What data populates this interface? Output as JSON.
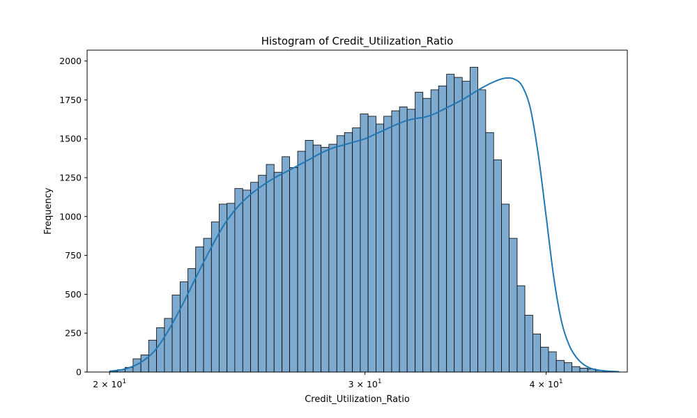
{
  "chart_data": {
    "type": "bar",
    "title": "Histogram of Credit_Utilization_Ratio",
    "xlabel": "Credit_Utilization_Ratio",
    "ylabel": "Frequency",
    "x_scale": "log",
    "xlim": [
      19.3,
      45.5
    ],
    "ylim": [
      0,
      2070
    ],
    "y_ticks": [
      0,
      250,
      500,
      750,
      1000,
      1250,
      1500,
      1750,
      2000
    ],
    "y_tick_labels": [
      "0",
      "250",
      "500",
      "750",
      "1000",
      "1250",
      "1500",
      "1750",
      "2000"
    ],
    "x_ticks": [
      20,
      30,
      40
    ],
    "x_tick_labels": [
      {
        "base": "2 × 10",
        "exp": "1"
      },
      {
        "base": "3 × 10",
        "exp": "1"
      },
      {
        "base": "4 × 10",
        "exp": "1"
      }
    ],
    "bin_edges": [
      20.0,
      20.25,
      20.5,
      20.76,
      21.02,
      21.28,
      21.55,
      21.82,
      22.09,
      22.37,
      22.65,
      22.93,
      23.22,
      23.51,
      23.8,
      24.1,
      24.4,
      24.71,
      25.02,
      25.33,
      25.65,
      25.97,
      26.3,
      26.62,
      26.96,
      27.29,
      27.63,
      27.98,
      28.33,
      28.69,
      29.04,
      29.41,
      29.78,
      30.15,
      30.53,
      30.91,
      31.3,
      31.69,
      32.08,
      32.49,
      32.89,
      33.31,
      33.72,
      34.15,
      34.57,
      35.01,
      35.45,
      35.89,
      36.34,
      36.8,
      37.26,
      37.72,
      38.2,
      38.67,
      39.16,
      39.65,
      40.15,
      40.65,
      41.16,
      41.67,
      42.2,
      42.73,
      43.26,
      43.8,
      44.35,
      44.91
    ],
    "values": [
      5,
      15,
      30,
      85,
      110,
      205,
      285,
      345,
      495,
      580,
      665,
      805,
      860,
      965,
      1080,
      1085,
      1180,
      1170,
      1220,
      1265,
      1335,
      1285,
      1385,
      1315,
      1420,
      1490,
      1460,
      1445,
      1465,
      1520,
      1540,
      1570,
      1660,
      1645,
      1595,
      1645,
      1680,
      1705,
      1690,
      1800,
      1760,
      1815,
      1840,
      1915,
      1895,
      1870,
      1960,
      1815,
      1540,
      1365,
      1080,
      860,
      555,
      365,
      245,
      160,
      130,
      75,
      60,
      35,
      25,
      20,
      10,
      5,
      2
    ],
    "kde": {
      "x": [
        20.0,
        20.5,
        21.0,
        21.5,
        22.0,
        22.5,
        23.0,
        23.5,
        24.0,
        24.5,
        25.0,
        25.5,
        26.0,
        26.5,
        27.0,
        27.5,
        28.0,
        28.5,
        29.0,
        29.5,
        30.0,
        30.5,
        31.0,
        31.5,
        32.0,
        32.5,
        33.0,
        33.5,
        34.0,
        34.5,
        35.0,
        35.5,
        36.0,
        36.5,
        37.0,
        37.5,
        38.0,
        38.5,
        39.0,
        39.5,
        40.0,
        40.5,
        41.0,
        41.5,
        42.0,
        42.5,
        43.0,
        43.5,
        44.0,
        44.5,
        44.9
      ],
      "y": [
        5,
        20,
        60,
        140,
        280,
        450,
        630,
        800,
        950,
        1060,
        1140,
        1200,
        1250,
        1290,
        1330,
        1370,
        1410,
        1440,
        1460,
        1480,
        1500,
        1530,
        1560,
        1590,
        1615,
        1630,
        1640,
        1660,
        1690,
        1720,
        1750,
        1785,
        1820,
        1850,
        1875,
        1890,
        1885,
        1840,
        1700,
        1400,
        1000,
        600,
        320,
        170,
        90,
        45,
        22,
        12,
        7,
        4,
        2
      ]
    },
    "bar_color": "#7eaacf",
    "line_color": "#1f77b4"
  }
}
